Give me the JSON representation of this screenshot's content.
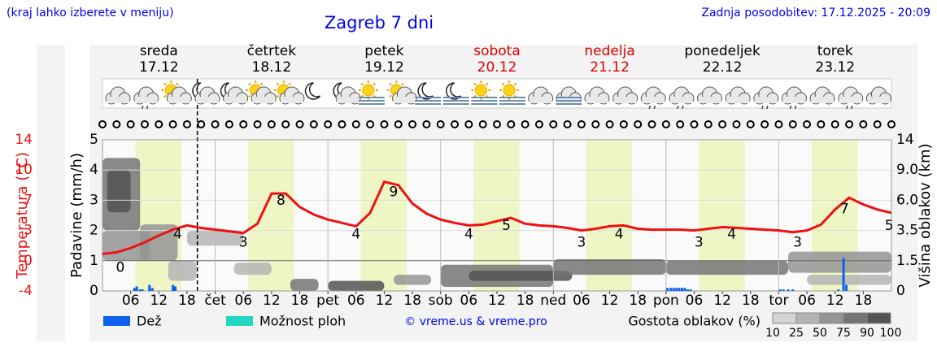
{
  "header": {
    "note": "(kraj lahko izberete v meniju)",
    "updated": "Zadnja posodobitev: 17.12.2025 - 20:09"
  },
  "chart_data": {
    "type": "meteogram",
    "title": "Zagreb 7 dni",
    "days": [
      {
        "name": "sreda",
        "date": "17.12",
        "color": "#000000"
      },
      {
        "name": "četrtek",
        "date": "18.12",
        "color": "#000000"
      },
      {
        "name": "petek",
        "date": "19.12",
        "color": "#000000"
      },
      {
        "name": "sobota",
        "date": "20.12",
        "color": "#e00000"
      },
      {
        "name": "nedelja",
        "date": "21.12",
        "color": "#e00000"
      },
      {
        "name": "ponedeljek",
        "date": "22.12",
        "color": "#000000"
      },
      {
        "name": "torek",
        "date": "23.12",
        "color": "#000000"
      }
    ],
    "xlim": [
      0,
      168
    ],
    "xticks": [
      {
        "value": 6,
        "label": "06"
      },
      {
        "value": 12,
        "label": "12"
      },
      {
        "value": 18,
        "label": "18"
      },
      {
        "value": 24,
        "label": "čet"
      },
      {
        "value": 30,
        "label": "06"
      },
      {
        "value": 36,
        "label": "12"
      },
      {
        "value": 42,
        "label": "18"
      },
      {
        "value": 48,
        "label": "pet"
      },
      {
        "value": 54,
        "label": "06"
      },
      {
        "value": 60,
        "label": "12"
      },
      {
        "value": 66,
        "label": "18"
      },
      {
        "value": 72,
        "label": "sob"
      },
      {
        "value": 78,
        "label": "06"
      },
      {
        "value": 84,
        "label": "12"
      },
      {
        "value": 90,
        "label": "18"
      },
      {
        "value": 96,
        "label": "ned"
      },
      {
        "value": 102,
        "label": "06"
      },
      {
        "value": 108,
        "label": "12"
      },
      {
        "value": 114,
        "label": "18"
      },
      {
        "value": 120,
        "label": "pon"
      },
      {
        "value": 126,
        "label": "06"
      },
      {
        "value": 132,
        "label": "12"
      },
      {
        "value": 138,
        "label": "18"
      },
      {
        "value": 144,
        "label": "tor"
      },
      {
        "value": 150,
        "label": "06"
      },
      {
        "value": 156,
        "label": "12"
      },
      {
        "value": 162,
        "label": "18"
      }
    ],
    "day_lines": [
      24,
      48,
      72,
      96,
      120,
      144
    ],
    "now": 20.2,
    "daylight": [
      [
        7,
        16.8
      ],
      [
        31,
        40.8
      ],
      [
        55,
        64.8
      ],
      [
        79,
        88.8
      ],
      [
        103,
        112.8
      ],
      [
        127,
        136.8
      ],
      [
        151,
        160.8
      ]
    ],
    "ylabel": "Padavine (mm/h)",
    "ylim": [
      0,
      5
    ],
    "yticks": [
      0,
      1,
      2,
      3,
      4,
      5
    ],
    "temp": {
      "name": "Temperatura (°C)",
      "color": "#ee1111",
      "ylim": [
        -4,
        14
      ],
      "yticks": [
        -4,
        {
          "value": -0.4,
          "label": "-0"
        },
        {
          "value": 3.2,
          "label": "3"
        },
        {
          "value": 6.8,
          "label": "7"
        },
        {
          "value": 10.4,
          "label": "10"
        },
        14
      ],
      "x": [
        0,
        3,
        6,
        9,
        12,
        15,
        18,
        21,
        24,
        27,
        30,
        33,
        36,
        39,
        42,
        45,
        48,
        51,
        54,
        57,
        60,
        63,
        66,
        69,
        72,
        75,
        78,
        81,
        84,
        87,
        90,
        93,
        96,
        99,
        102,
        105,
        108,
        111,
        114,
        117,
        120,
        123,
        126,
        129,
        132,
        135,
        138,
        141,
        144,
        147,
        150,
        153,
        156,
        159,
        162,
        165,
        168
      ],
      "values": [
        0.4,
        0.6,
        1.1,
        1.8,
        2.6,
        3.3,
        3.8,
        3.5,
        3.3,
        3.1,
        2.9,
        4.0,
        7.6,
        7.6,
        6.0,
        5.1,
        4.5,
        4.1,
        3.7,
        5.3,
        9.0,
        8.6,
        6.4,
        5.2,
        4.5,
        4.1,
        3.8,
        3.9,
        4.3,
        4.7,
        4.0,
        3.8,
        3.7,
        3.5,
        3.2,
        3.4,
        3.7,
        3.8,
        3.4,
        3.3,
        3.3,
        3.3,
        3.2,
        3.4,
        3.6,
        3.5,
        3.4,
        3.3,
        3.2,
        3.0,
        3.2,
        3.9,
        5.7,
        7.1,
        6.3,
        5.7,
        5.3
      ],
      "labels": {
        "x": [
          3.8,
          16,
          30,
          38,
          54,
          62,
          78,
          86,
          102,
          110,
          127,
          134,
          148,
          158,
          167.5
        ],
        "values": [
          0,
          4,
          3,
          8,
          4,
          9,
          4,
          5,
          3,
          4,
          3,
          4,
          3,
          7,
          5
        ]
      }
    },
    "series": [
      {
        "name": "Dež",
        "color": "#1060f0",
        "x": [
          6.8,
          7.3,
          8,
          8.5,
          10,
          10.6,
          15,
          15.5,
          120.3,
          121,
          121.6,
          122.2,
          122.8,
          123.4,
          124,
          124.6,
          125.2,
          144.3,
          145,
          146,
          147,
          156.7,
          157.8,
          158.4
        ],
        "values": [
          0.1,
          0.15,
          0.05,
          0.05,
          0.2,
          0.1,
          0.2,
          0.15,
          0.1,
          0.1,
          0.1,
          0.1,
          0.1,
          0.1,
          0.1,
          0.05,
          0.05,
          0.05,
          0.05,
          0.05,
          0.05,
          0.05,
          1.1,
          0.2
        ]
      },
      {
        "name": "Možnost ploh",
        "color": "#20d8c0",
        "x": [],
        "values": []
      }
    ],
    "clouds": {
      "name": "Višina oblakov (km)",
      "ylim": [
        0,
        14
      ],
      "yticks": [
        0,
        1.5,
        3.5,
        {
          "value": 6,
          "label": "6.0"
        },
        {
          "value": 9,
          "label": "9.0"
        },
        14
      ],
      "legend_title": "Gostota oblakov (%)",
      "levels": [
        10,
        25,
        50,
        75,
        90,
        100
      ],
      "colors": [
        "#d4d4d4",
        "#b4b4b4",
        "#949494",
        "#747474",
        "#545454"
      ],
      "blocks": [
        {
          "x": [
            0,
            8
          ],
          "y": [
            3.5,
            11
          ],
          "density": 75
        },
        {
          "x": [
            1,
            6
          ],
          "y": [
            5,
            9
          ],
          "density": 90
        },
        {
          "x": [
            0,
            10
          ],
          "y": [
            1.5,
            3.5
          ],
          "density": 50
        },
        {
          "x": [
            8,
            16
          ],
          "y": [
            1.5,
            4
          ],
          "density": 50
        },
        {
          "x": [
            14,
            20
          ],
          "y": [
            0.5,
            1.5
          ],
          "density": 25
        },
        {
          "x": [
            18,
            30
          ],
          "y": [
            2.5,
            3.5
          ],
          "density": 25
        },
        {
          "x": [
            28,
            36
          ],
          "y": [
            0.8,
            1.4
          ],
          "density": 25
        },
        {
          "x": [
            40,
            46
          ],
          "y": [
            0,
            0.6
          ],
          "density": 75
        },
        {
          "x": [
            48,
            60
          ],
          "y": [
            0,
            0.5
          ],
          "density": 90
        },
        {
          "x": [
            62,
            70
          ],
          "y": [
            0.3,
            0.8
          ],
          "density": 50
        },
        {
          "x": [
            72,
            96
          ],
          "y": [
            0.2,
            1.3
          ],
          "density": 75
        },
        {
          "x": [
            78,
            100
          ],
          "y": [
            0.5,
            1.0
          ],
          "density": 90
        },
        {
          "x": [
            96,
            120
          ],
          "y": [
            0.8,
            1.6
          ],
          "density": 75
        },
        {
          "x": [
            120,
            146
          ],
          "y": [
            0.8,
            1.5
          ],
          "density": 75
        },
        {
          "x": [
            146,
            168
          ],
          "y": [
            0.9,
            2.1
          ],
          "density": 50
        },
        {
          "x": [
            150,
            168
          ],
          "y": [
            0.3,
            0.8
          ],
          "density": 25
        }
      ]
    },
    "credit": "© vreme.us & vreme.pro"
  }
}
